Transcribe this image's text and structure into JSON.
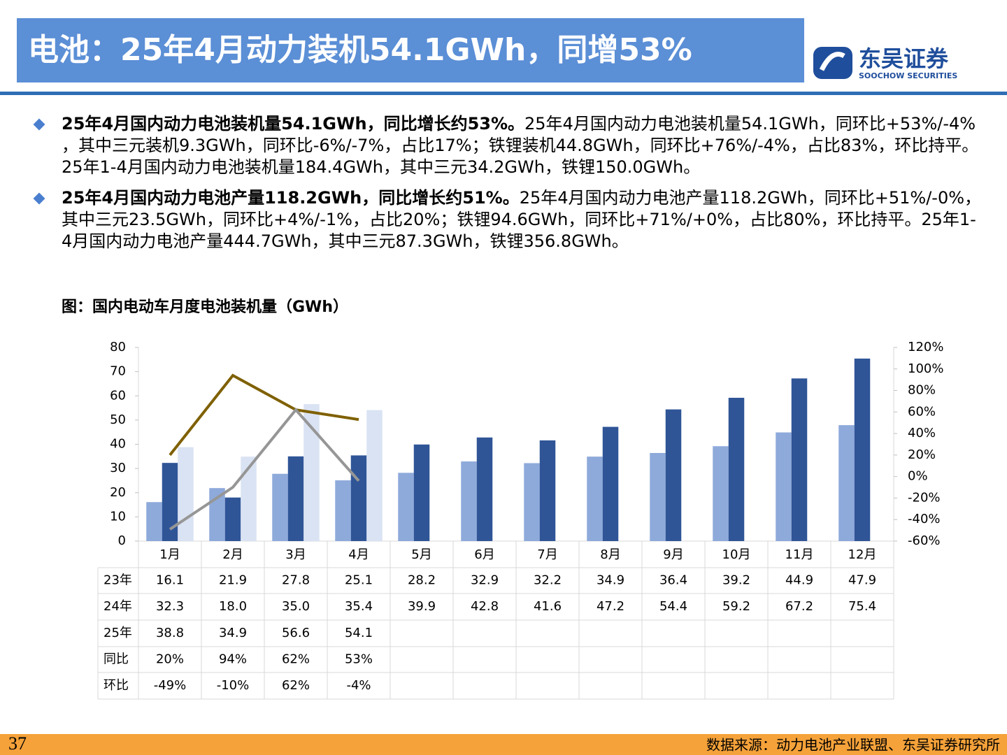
{
  "header": {
    "title": "电池：25年4月动力装机54.1GWh，同增53%",
    "logo_cn": "东吴证券",
    "logo_en": "SOOCHOW SECURITIES"
  },
  "bullets": [
    {
      "bold": "25年4月国内动力电池装机量54.1GWh，同比增长约53%。",
      "text": "25年4月国内动力电池装机量54.1GWh，同环比+53%/-4% ，其中三元装机9.3GWh，同环比-6%/-7%，占比17%；铁锂装机44.8GWh，同环比+76%/-4%，占比83%，环比持平。25年1-4月国内动力电池装机量184.4GWh，其中三元34.2GWh，铁锂150.0GWh。"
    },
    {
      "bold": "25年4月国内动力电池产量118.2GWh，同比增长约51%。",
      "text": "25年4月国内动力电池产量118.2GWh，同环比+51%/-0%，其中三元23.5GWh，同环比+4%/-1%，占比20%；铁锂94.6GWh，同环比+71%/+0%，占比80%，环比持平。25年1-4月国内动力电池产量444.7GWh，其中三元87.3GWh，铁锂356.8GWh。"
    }
  ],
  "chart_data": {
    "type": "bar",
    "title": "图：国内电动车月度电池装机量（GWh）",
    "categories": [
      "1月",
      "2月",
      "3月",
      "4月",
      "5月",
      "6月",
      "7月",
      "8月",
      "9月",
      "10月",
      "11月",
      "12月"
    ],
    "series": [
      {
        "name": "23年",
        "color": "#8eaadb",
        "values": [
          16.1,
          21.9,
          27.8,
          25.1,
          28.2,
          32.9,
          32.2,
          34.9,
          36.4,
          39.2,
          44.9,
          47.9
        ]
      },
      {
        "name": "24年",
        "color": "#2f5597",
        "values": [
          32.3,
          18.0,
          35.0,
          35.4,
          39.9,
          42.8,
          41.6,
          47.2,
          54.4,
          59.2,
          67.2,
          75.4
        ],
        "value_labels": [
          "32.3",
          "18.0",
          "35.0",
          "35.4",
          "39.9",
          "42.8",
          "41.6",
          "47.2",
          "54.4",
          "59.2",
          "67.2",
          "75.4"
        ]
      },
      {
        "name": "25年",
        "color": "#dae3f3",
        "values": [
          38.8,
          34.9,
          56.6,
          54.1,
          null,
          null,
          null,
          null,
          null,
          null,
          null,
          null
        ]
      },
      {
        "name": "同比",
        "type": "line",
        "axis": "y2",
        "color": "#7f6000",
        "values": [
          20,
          94,
          62,
          53,
          null,
          null,
          null,
          null,
          null,
          null,
          null,
          null
        ],
        "value_labels": [
          "20%",
          "94%",
          "62%",
          "53%",
          null,
          null,
          null,
          null,
          null,
          null,
          null,
          null
        ]
      },
      {
        "name": "环比",
        "type": "line",
        "axis": "y2",
        "color": "#969696",
        "values": [
          -49,
          -10,
          62,
          -4,
          null,
          null,
          null,
          null,
          null,
          null,
          null,
          null
        ],
        "value_labels": [
          "-49%",
          "-10%",
          "62%",
          "-4%",
          null,
          null,
          null,
          null,
          null,
          null,
          null,
          null
        ]
      }
    ],
    "ylim": [
      0,
      80
    ],
    "yticks": [
      0,
      10,
      20,
      30,
      40,
      50,
      60,
      70,
      80
    ],
    "y2lim": [
      -60,
      120
    ],
    "y2ticks": [
      {
        "value": -60,
        "label": "-60%"
      },
      {
        "value": -40,
        "label": "-40%"
      },
      {
        "value": -20,
        "label": "-20%"
      },
      {
        "value": 0,
        "label": "0%"
      },
      {
        "value": 20,
        "label": "20%"
      },
      {
        "value": 40,
        "label": "40%"
      },
      {
        "value": 60,
        "label": "60%"
      },
      {
        "value": 80,
        "label": "80%"
      },
      {
        "value": 100,
        "label": "100%"
      },
      {
        "value": 120,
        "label": "120%"
      }
    ]
  },
  "footer": {
    "page": "37",
    "source": "数据来源：动力电池产业联盟、东吴证券研究所"
  }
}
